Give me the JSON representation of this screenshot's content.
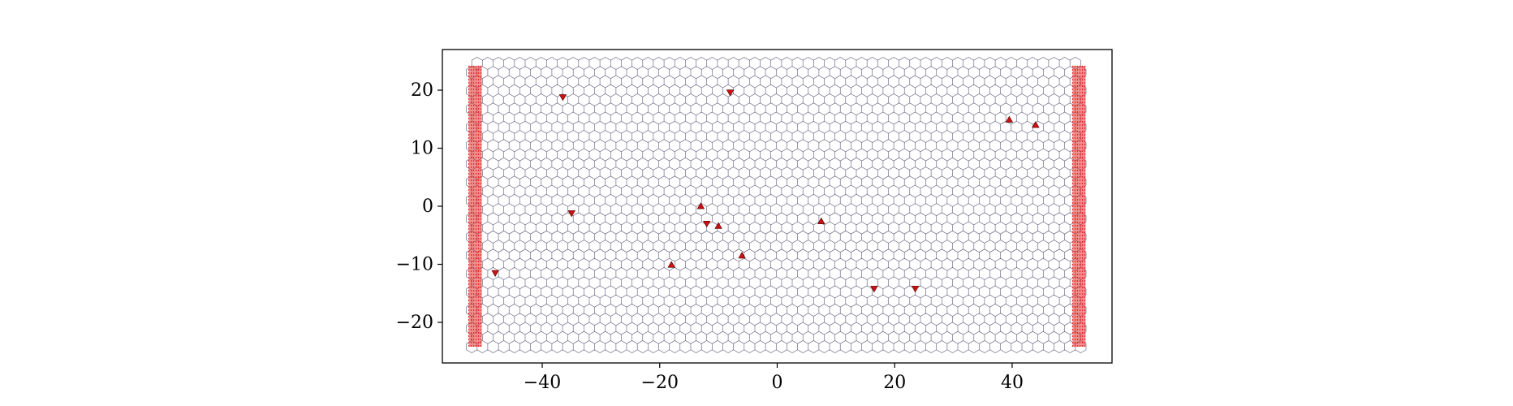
{
  "chart_data": {
    "type": "scatter",
    "title": "",
    "xlabel": "",
    "ylabel": "",
    "xlim": [
      -57,
      57
    ],
    "ylim": [
      -27,
      27
    ],
    "x_ticks": [
      -40,
      -20,
      0,
      20,
      40
    ],
    "y_ticks": [
      -20,
      -10,
      0,
      10,
      20
    ],
    "x_tick_labels": [
      "−40",
      "−20",
      "0",
      "20",
      "40"
    ],
    "y_tick_labels": [
      "−20",
      "−10",
      "0",
      "10",
      "20"
    ],
    "grid": false,
    "legend": "none",
    "lattice": {
      "type": "honeycomb",
      "x_range": [
        -52,
        52
      ],
      "y_range": [
        -24.2,
        24.2
      ],
      "color": "#5a5a78"
    },
    "lead_regions": [
      {
        "name": "left-lead",
        "x_range": [
          -52.5,
          -50.3
        ],
        "color": "#e53030"
      },
      {
        "name": "right-lead",
        "x_range": [
          50.3,
          52.5
        ],
        "color": "#e53030"
      }
    ],
    "series": [
      {
        "marker": "triangle-down",
        "color": "#cc1111",
        "points": [
          {
            "x": -36.5,
            "y": 18.8
          },
          {
            "x": -8.0,
            "y": 19.6
          },
          {
            "x": -35.0,
            "y": -1.2
          },
          {
            "x": -48.0,
            "y": -11.5
          },
          {
            "x": -12.0,
            "y": -3.0
          },
          {
            "x": 16.5,
            "y": -14.2
          },
          {
            "x": 23.5,
            "y": -14.2
          }
        ]
      },
      {
        "marker": "triangle-up",
        "color": "#cc1111",
        "points": [
          {
            "x": 39.5,
            "y": 14.9
          },
          {
            "x": 44.0,
            "y": 14.0
          },
          {
            "x": -13.0,
            "y": 0.0
          },
          {
            "x": -10.0,
            "y": -3.4
          },
          {
            "x": 7.5,
            "y": -2.6
          },
          {
            "x": -18.0,
            "y": -10.1
          },
          {
            "x": -6.0,
            "y": -8.5
          }
        ]
      }
    ]
  }
}
